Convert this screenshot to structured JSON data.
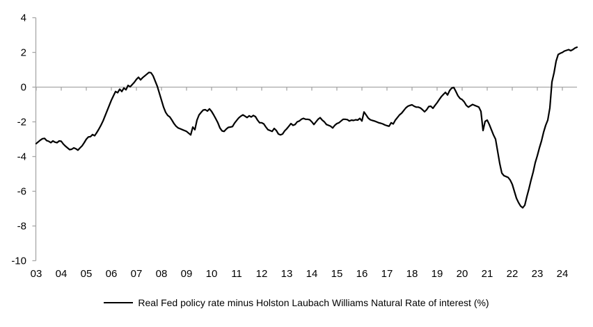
{
  "chart_data": {
    "type": "line",
    "title": "",
    "legend": {
      "label": "Real Fed policy rate minus Holston Laubach Williams Natural Rate of interest (%)"
    },
    "x_tick_labels": [
      "03",
      "04",
      "05",
      "06",
      "07",
      "08",
      "09",
      "10",
      "11",
      "12",
      "13",
      "14",
      "15",
      "16",
      "17",
      "18",
      "19",
      "20",
      "21",
      "22",
      "23",
      "24"
    ],
    "y_ticks": [
      4,
      2,
      0,
      -2,
      -4,
      -6,
      -8,
      -10
    ],
    "ylim": [
      -10,
      4
    ],
    "xlim_years": [
      2003.0,
      2024.67
    ],
    "grid": "zero-line-only",
    "legend_position": "bottom-center",
    "axis_color": "#a6a6a6",
    "text_color": "#000000",
    "series": [
      {
        "name": "Real Fed policy rate minus Holston Laubach Williams Natural Rate of interest (%)",
        "color": "#000000",
        "x_start_year": 2003,
        "x_step_months": 1,
        "values": [
          -3.25,
          -3.15,
          -3.05,
          -2.97,
          -2.95,
          -3.08,
          -3.12,
          -3.2,
          -3.1,
          -3.17,
          -3.2,
          -3.1,
          -3.12,
          -3.28,
          -3.4,
          -3.5,
          -3.6,
          -3.58,
          -3.5,
          -3.55,
          -3.63,
          -3.5,
          -3.38,
          -3.2,
          -3.0,
          -2.87,
          -2.85,
          -2.73,
          -2.8,
          -2.62,
          -2.42,
          -2.2,
          -1.95,
          -1.65,
          -1.35,
          -1.05,
          -0.75,
          -0.5,
          -0.25,
          -0.32,
          -0.12,
          -0.25,
          -0.05,
          -0.15,
          0.1,
          0.02,
          0.15,
          0.28,
          0.45,
          0.57,
          0.42,
          0.55,
          0.65,
          0.75,
          0.85,
          0.83,
          0.65,
          0.35,
          0.05,
          -0.35,
          -0.75,
          -1.15,
          -1.45,
          -1.63,
          -1.72,
          -1.9,
          -2.1,
          -2.25,
          -2.35,
          -2.4,
          -2.45,
          -2.5,
          -2.55,
          -2.65,
          -2.75,
          -2.3,
          -2.45,
          -1.9,
          -1.6,
          -1.45,
          -1.32,
          -1.3,
          -1.38,
          -1.25,
          -1.4,
          -1.6,
          -1.82,
          -2.05,
          -2.35,
          -2.52,
          -2.55,
          -2.42,
          -2.32,
          -2.3,
          -2.27,
          -2.07,
          -1.92,
          -1.77,
          -1.67,
          -1.6,
          -1.67,
          -1.75,
          -1.65,
          -1.72,
          -1.63,
          -1.7,
          -1.9,
          -2.05,
          -2.05,
          -2.12,
          -2.3,
          -2.45,
          -2.5,
          -2.55,
          -2.38,
          -2.5,
          -2.7,
          -2.75,
          -2.7,
          -2.52,
          -2.4,
          -2.25,
          -2.1,
          -2.2,
          -2.15,
          -2.0,
          -1.95,
          -1.85,
          -1.8,
          -1.85,
          -1.85,
          -1.88,
          -2.0,
          -2.15,
          -2.0,
          -1.85,
          -1.76,
          -1.9,
          -2.0,
          -2.15,
          -2.2,
          -2.25,
          -2.35,
          -2.2,
          -2.1,
          -2.05,
          -1.95,
          -1.85,
          -1.85,
          -1.87,
          -1.95,
          -1.9,
          -1.92,
          -1.88,
          -1.9,
          -1.8,
          -1.95,
          -1.43,
          -1.6,
          -1.78,
          -1.88,
          -1.92,
          -1.95,
          -2.0,
          -2.05,
          -2.08,
          -2.12,
          -2.18,
          -2.22,
          -2.25,
          -2.05,
          -2.12,
          -1.9,
          -1.75,
          -1.6,
          -1.5,
          -1.35,
          -1.2,
          -1.1,
          -1.05,
          -1.02,
          -1.1,
          -1.15,
          -1.15,
          -1.2,
          -1.3,
          -1.42,
          -1.3,
          -1.12,
          -1.1,
          -1.22,
          -1.05,
          -0.9,
          -0.72,
          -0.55,
          -0.42,
          -0.3,
          -0.45,
          -0.2,
          -0.05,
          -0.02,
          -0.25,
          -0.5,
          -0.65,
          -0.72,
          -0.85,
          -1.05,
          -1.15,
          -1.07,
          -1.0,
          -1.05,
          -1.1,
          -1.15,
          -1.4,
          -2.5,
          -1.97,
          -1.9,
          -2.15,
          -2.45,
          -2.75,
          -3.0,
          -3.7,
          -4.4,
          -4.95,
          -5.1,
          -5.15,
          -5.2,
          -5.35,
          -5.6,
          -6.0,
          -6.4,
          -6.65,
          -6.85,
          -6.95,
          -6.8,
          -6.3,
          -5.85,
          -5.35,
          -4.9,
          -4.35,
          -3.95,
          -3.5,
          -3.1,
          -2.6,
          -2.2,
          -1.9,
          -1.2,
          0.3,
          0.82,
          1.5,
          1.88,
          1.95,
          2.0,
          2.08,
          2.12,
          2.16,
          2.1,
          2.16,
          2.25,
          2.3
        ]
      }
    ]
  }
}
